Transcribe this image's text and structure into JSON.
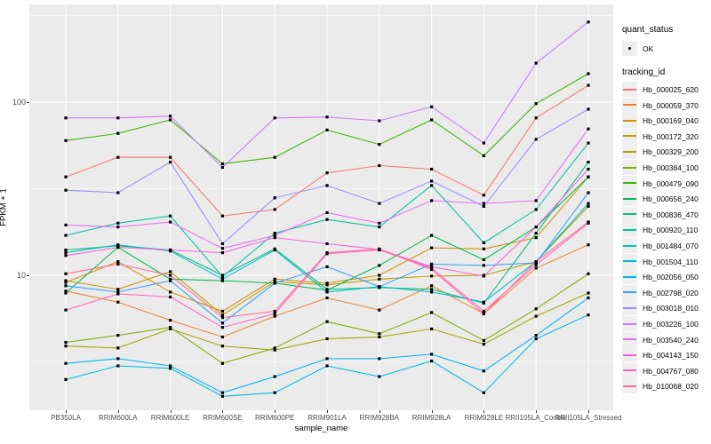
{
  "chart_data": {
    "type": "line",
    "title": "",
    "xlabel": "sample_name",
    "ylabel": "FPKM + 1",
    "y_scale": "log10",
    "ylim": [
      1.7,
      330
    ],
    "y_major_ticks": [
      100,
      10
    ],
    "y_tick_labels": [
      "100",
      "10"
    ],
    "y_minor_breaks": [
      3.1623,
      31.623,
      316.23
    ],
    "grid": "on",
    "legend_position": "right",
    "categories": [
      "PB350LA",
      "RRIM600LA",
      "RRIM600LE",
      "RRIM600SE",
      "RRIM600PE",
      "RRIM901LA",
      "RRIM928BA",
      "RRIM928LA",
      "RRIM928LE",
      "RRII105LA_Control",
      "RRII105LA_Stressed"
    ],
    "series": [
      {
        "name": "Hb_000025_620",
        "color": "#F8766D",
        "values": [
          37,
          48,
          48,
          22,
          24,
          39,
          43,
          41,
          29,
          81,
          125
        ]
      },
      {
        "name": "Hb_000059_370",
        "color": "#EA8331",
        "values": [
          8.1,
          7.0,
          5.5,
          4.4,
          5.8,
          7.4,
          6.3,
          8.7,
          6.0,
          11,
          15
        ]
      },
      {
        "name": "Hb_000169_040",
        "color": "#D89000",
        "values": [
          9.1,
          12,
          8.0,
          6.2,
          9.5,
          9.0,
          10,
          14.4,
          14.2,
          16.5,
          37
        ]
      },
      {
        "name": "Hb_000172_320",
        "color": "#C09B00",
        "values": [
          9.3,
          8.3,
          10.5,
          5.9,
          9.2,
          8.8,
          9.5,
          9.9,
          10,
          12,
          25
        ]
      },
      {
        "name": "Hb_000329_200",
        "color": "#A3A500",
        "values": [
          3.9,
          3.8,
          4.9,
          3.9,
          3.7,
          4.3,
          4.4,
          4.9,
          4.0,
          5.8,
          7.9
        ]
      },
      {
        "name": "Hb_000384_100",
        "color": "#7CAE00",
        "values": [
          4.1,
          4.5,
          5.0,
          3.1,
          3.8,
          5.4,
          4.6,
          6.1,
          4.2,
          6.4,
          10.2
        ]
      },
      {
        "name": "Hb_000479_090",
        "color": "#39B600",
        "values": [
          60,
          66,
          79,
          44,
          48,
          69,
          57,
          79,
          49,
          98,
          146
        ]
      },
      {
        "name": "Hb_000656_240",
        "color": "#00BB4E",
        "values": [
          7.9,
          14.5,
          9.5,
          9.3,
          9.0,
          8.2,
          11.4,
          17,
          12.3,
          19,
          37
        ]
      },
      {
        "name": "Hb_000836_470",
        "color": "#00BF7D",
        "values": [
          14,
          14.8,
          14,
          10,
          14.2,
          8.3,
          8.5,
          8.3,
          6.9,
          17.5,
          45
        ]
      },
      {
        "name": "Hb_000920_110",
        "color": "#00C1A3",
        "values": [
          17,
          20,
          22,
          9.8,
          17.5,
          21,
          19,
          33,
          15.4,
          24,
          58
        ]
      },
      {
        "name": "Hb_001484_070",
        "color": "#00BFC4",
        "values": [
          13.5,
          15,
          13.8,
          9.5,
          14,
          8.0,
          8.6,
          8.0,
          7.0,
          12,
          26
        ]
      },
      {
        "name": "Hb_001504_110",
        "color": "#00BAE0",
        "values": [
          2.5,
          3.0,
          2.9,
          2.0,
          2.1,
          3.0,
          2.6,
          3.2,
          2.1,
          4.3,
          5.9
        ]
      },
      {
        "name": "Hb_002056_050",
        "color": "#00B0F6",
        "values": [
          3.1,
          3.3,
          3.0,
          2.1,
          2.6,
          3.3,
          3.3,
          3.5,
          2.8,
          4.5,
          7.4
        ]
      },
      {
        "name": "Hb_002798_020",
        "color": "#35A2FF",
        "values": [
          8.7,
          8.0,
          9.3,
          5.3,
          9.0,
          11.2,
          8.6,
          11.6,
          11.4,
          11.8,
          30
        ]
      },
      {
        "name": "Hb_003018_010",
        "color": "#9590FF",
        "values": [
          31,
          30,
          45,
          15.2,
          28,
          33,
          26,
          35,
          25,
          61,
          91
        ]
      },
      {
        "name": "Hb_003226_100",
        "color": "#C77CFF",
        "values": [
          81,
          81,
          83,
          42,
          81,
          82,
          78,
          94,
          58,
          168,
          290
        ]
      },
      {
        "name": "Hb_003540_240",
        "color": "#E76BF3",
        "values": [
          19.5,
          19,
          20.3,
          14.3,
          17,
          23,
          20,
          27,
          26,
          27,
          70
        ]
      },
      {
        "name": "Hb_004143_150",
        "color": "#FA62DB",
        "values": [
          13,
          14.5,
          14,
          13.5,
          16.5,
          15.2,
          14.1,
          11.2,
          9.9,
          19,
          41
        ]
      },
      {
        "name": "Hb_004767_080",
        "color": "#FF62BC",
        "values": [
          6.3,
          7.8,
          7.5,
          5.0,
          6.0,
          13.3,
          14.0,
          11.0,
          6.2,
          11.5,
          20
        ]
      },
      {
        "name": "Hb_010068_020",
        "color": "#FF6A98",
        "values": [
          10.2,
          11.6,
          10.0,
          5.7,
          6.2,
          13.5,
          14.2,
          10.8,
          6.0,
          12,
          20.3
        ]
      }
    ]
  },
  "legend": {
    "quant_status_title": "quant_status",
    "quant_status_items": [
      {
        "label": "OK",
        "shape": "point"
      }
    ],
    "tracking_id_title": "tracking_id"
  },
  "theme": {
    "panel_bg": "#EBEBEB",
    "grid_color": "#FFFFFF",
    "point_color": "#000000",
    "tick_label_color": "#4D4D4D"
  }
}
